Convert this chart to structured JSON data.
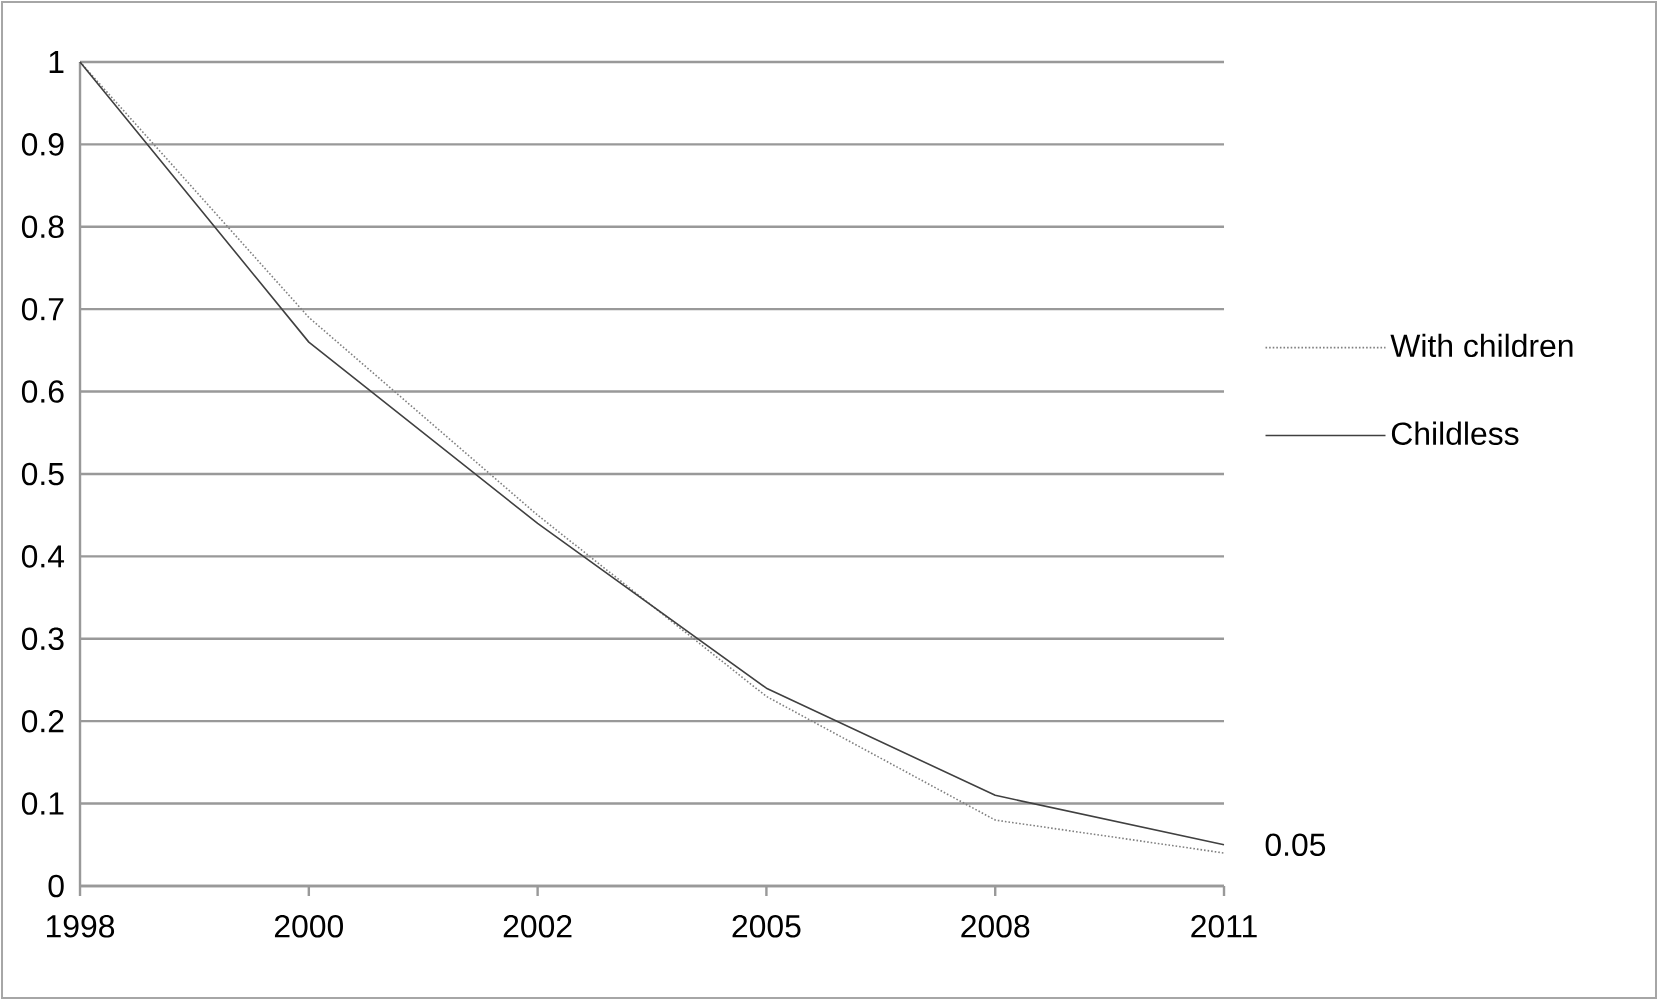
{
  "chart_data": {
    "type": "line",
    "categories": [
      "1998",
      "2000",
      "2002",
      "2005",
      "2008",
      "2011"
    ],
    "series": [
      {
        "name": "With children",
        "color": "#808080",
        "line_style": "dotted",
        "values": [
          1,
          0.69,
          0.45,
          0.23,
          0.08,
          0.04
        ]
      },
      {
        "name": "Childless",
        "color": "#404040",
        "line_style": "solid",
        "values": [
          1,
          0.66,
          0.44,
          0.24,
          0.11,
          0.05
        ],
        "value_labels": [
          null,
          null,
          null,
          null,
          null,
          "0.05"
        ]
      }
    ],
    "ylim": [
      0,
      1
    ],
    "yticks": [
      0,
      0.1,
      0.2,
      0.3,
      0.4,
      0.5,
      0.6,
      0.7,
      0.8,
      0.9,
      1
    ],
    "grid": "y",
    "legend": "right",
    "marker": "none"
  }
}
